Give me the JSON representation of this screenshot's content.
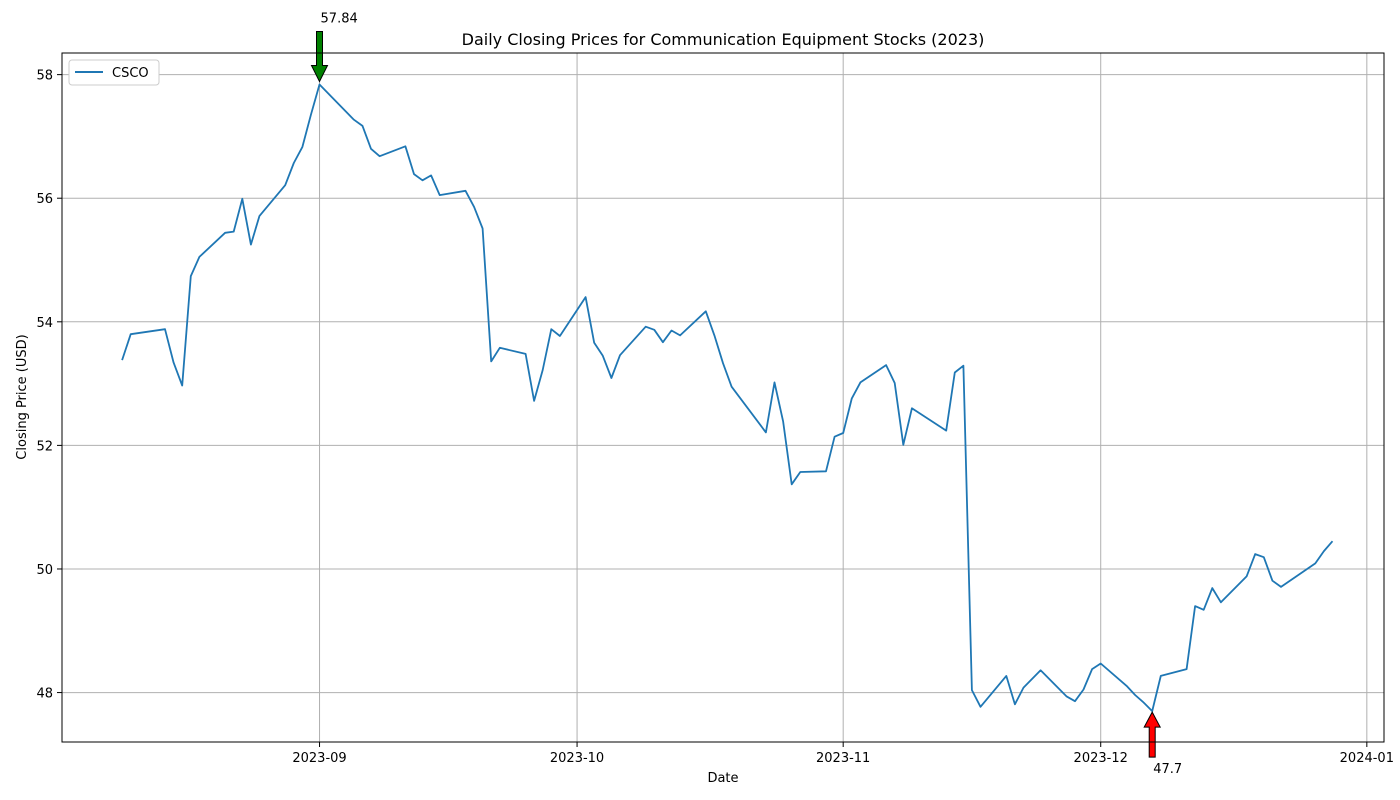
{
  "chart_data": {
    "type": "line",
    "title": "Daily Closing Prices for Communication Equipment Stocks (2023)",
    "xlabel": "Date",
    "ylabel": "Closing Price (USD)",
    "xlim": [
      "2023-08-02",
      "2024-01-03"
    ],
    "ylim": [
      47.2,
      58.35
    ],
    "grid": true,
    "legend": {
      "placement": "upper-left",
      "entries": [
        "CSCO"
      ]
    },
    "x_ticks": [
      "2023-09",
      "2023-10",
      "2023-11",
      "2023-12",
      "2024-01"
    ],
    "x_tick_dates": [
      "2023-09-01",
      "2023-10-01",
      "2023-11-01",
      "2023-12-01",
      "2024-01-01"
    ],
    "y_ticks": [
      48,
      50,
      52,
      54,
      56,
      58
    ],
    "series": [
      {
        "name": "CSCO",
        "color": "#1f77b4",
        "x": [
          "2023-08-09",
          "2023-08-10",
          "2023-08-14",
          "2023-08-15",
          "2023-08-16",
          "2023-08-17",
          "2023-08-18",
          "2023-08-21",
          "2023-08-22",
          "2023-08-23",
          "2023-08-24",
          "2023-08-25",
          "2023-08-28",
          "2023-08-29",
          "2023-08-30",
          "2023-08-31",
          "2023-09-01",
          "2023-09-05",
          "2023-09-06",
          "2023-09-07",
          "2023-09-08",
          "2023-09-11",
          "2023-09-12",
          "2023-09-13",
          "2023-09-14",
          "2023-09-15",
          "2023-09-18",
          "2023-09-19",
          "2023-09-20",
          "2023-09-21",
          "2023-09-22",
          "2023-09-25",
          "2023-09-26",
          "2023-09-27",
          "2023-09-28",
          "2023-09-29",
          "2023-10-02",
          "2023-10-03",
          "2023-10-04",
          "2023-10-05",
          "2023-10-06",
          "2023-10-09",
          "2023-10-10",
          "2023-10-11",
          "2023-10-12",
          "2023-10-13",
          "2023-10-16",
          "2023-10-17",
          "2023-10-18",
          "2023-10-19",
          "2023-10-23",
          "2023-10-24",
          "2023-10-25",
          "2023-10-26",
          "2023-10-27",
          "2023-10-30",
          "2023-10-31",
          "2023-11-01",
          "2023-11-02",
          "2023-11-03",
          "2023-11-06",
          "2023-11-07",
          "2023-11-08",
          "2023-11-09",
          "2023-11-13",
          "2023-11-14",
          "2023-11-15",
          "2023-11-16",
          "2023-11-17",
          "2023-11-20",
          "2023-11-21",
          "2023-11-22",
          "2023-11-24",
          "2023-11-27",
          "2023-11-28",
          "2023-11-29",
          "2023-11-30",
          "2023-12-01",
          "2023-12-04",
          "2023-12-05",
          "2023-12-06",
          "2023-12-07",
          "2023-12-08",
          "2023-12-11",
          "2023-12-12",
          "2023-12-13",
          "2023-12-14",
          "2023-12-15",
          "2023-12-18",
          "2023-12-19",
          "2023-12-20",
          "2023-12-21",
          "2023-12-22",
          "2023-12-26",
          "2023-12-27",
          "2023-12-28"
        ],
        "values": [
          53.38,
          53.8,
          53.88,
          53.34,
          52.97,
          54.74,
          55.05,
          55.44,
          55.46,
          55.99,
          55.25,
          55.71,
          56.21,
          56.57,
          56.83,
          57.35,
          57.84,
          57.27,
          57.17,
          56.8,
          56.68,
          56.84,
          56.39,
          56.29,
          56.37,
          56.05,
          56.12,
          55.86,
          55.51,
          53.36,
          53.58,
          53.48,
          52.72,
          53.22,
          53.88,
          53.77,
          54.4,
          53.66,
          53.45,
          53.09,
          53.46,
          53.92,
          53.87,
          53.67,
          53.86,
          53.78,
          54.17,
          53.78,
          53.33,
          52.95,
          52.21,
          53.02,
          52.39,
          51.37,
          51.57,
          51.58,
          52.14,
          52.2,
          52.76,
          53.02,
          53.3,
          53.01,
          52.01,
          52.6,
          52.24,
          53.18,
          53.29,
          48.04,
          47.77,
          48.27,
          47.81,
          48.08,
          48.36,
          47.94,
          47.86,
          48.05,
          48.38,
          48.47,
          48.11,
          47.96,
          47.84,
          47.7,
          48.27,
          48.38,
          49.4,
          49.34,
          49.69,
          49.46,
          49.88,
          50.24,
          50.19,
          49.81,
          49.71,
          50.09,
          50.29,
          50.45
        ]
      }
    ],
    "annotations": [
      {
        "text": "57.84",
        "date": "2023-09-01",
        "value": 57.84,
        "kind": "max",
        "arrow": "down",
        "color": "#008000"
      },
      {
        "text": "47.7",
        "date": "2023-12-07",
        "value": 47.7,
        "kind": "min",
        "arrow": "up",
        "color": "#ff0000"
      }
    ]
  }
}
